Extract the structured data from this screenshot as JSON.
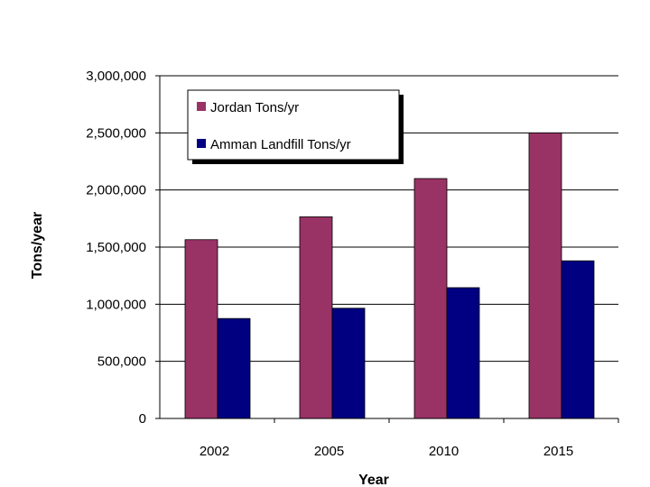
{
  "chart_data": {
    "type": "bar",
    "categories": [
      "2002",
      "2005",
      "2010",
      "2015"
    ],
    "series": [
      {
        "name": "Jordan Tons/yr",
        "values": [
          1565000,
          1765000,
          2100000,
          2500000
        ],
        "color": "#993366"
      },
      {
        "name": "Amman Landfill Tons/yr",
        "values": [
          875000,
          965000,
          1145000,
          1380000
        ],
        "color": "#000080"
      }
    ],
    "title": "",
    "xlabel": "Year",
    "ylabel": "Tons/year",
    "ylim": [
      0,
      3000000
    ],
    "yticks": [
      0,
      500000,
      1000000,
      1500000,
      2000000,
      2500000,
      3000000
    ],
    "ytick_labels": [
      "0",
      "500,000",
      "1,000,000",
      "1,500,000",
      "2,000,000",
      "2,500,000",
      "3,000,000"
    ],
    "grid": true,
    "legend_position": "top-left"
  }
}
